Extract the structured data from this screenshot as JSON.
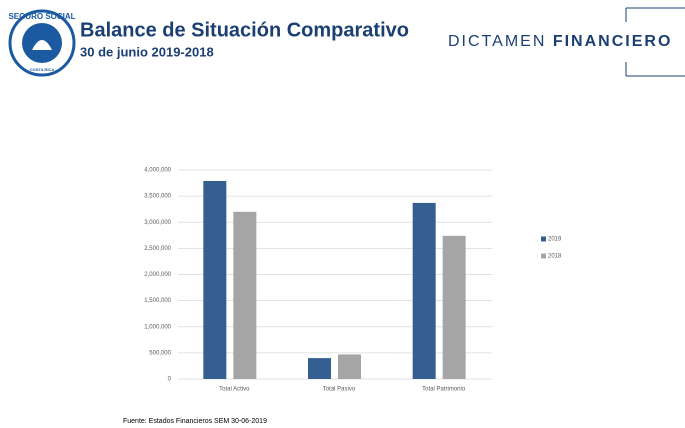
{
  "header": {
    "title": "Balance de Situación Comparativo",
    "subtitle": "30 de junio 2019-2018",
    "brand_light": "DICTAMEN",
    "brand_bold": "FINANCIERO",
    "logo_top": "SEGURO SOCIAL",
    "logo_bottom": "COSTA RICA"
  },
  "chart_data": {
    "type": "bar",
    "categories": [
      "Total Activo",
      "Total Pasivo",
      "Total Patrimonio"
    ],
    "series": [
      {
        "name": "2019",
        "color": "#355e91",
        "values": [
          3790000,
          400000,
          3370000
        ]
      },
      {
        "name": "2018",
        "color": "#a5a5a5",
        "values": [
          3200000,
          470000,
          2740000
        ]
      }
    ],
    "ylim": [
      0,
      4000000
    ],
    "yticks": [
      0,
      {
        "value": 500000,
        "label": "500,000"
      },
      {
        "value": 1000000,
        "label": "1,000,000"
      },
      {
        "value": 1500000,
        "label": "1,500,000"
      },
      {
        "value": 2000000,
        "label": "2,000,000"
      },
      {
        "value": 2500000,
        "label": "2,500,000"
      },
      {
        "value": 3000000,
        "label": "3,000,000"
      },
      {
        "value": 3500000,
        "label": "3,500,000"
      },
      {
        "value": 4000000,
        "label": "4,000,000"
      }
    ],
    "grid": true,
    "legend": "right"
  },
  "footer": {
    "source": "Fuente: Estados Financieros SEM 30-06-2019"
  }
}
